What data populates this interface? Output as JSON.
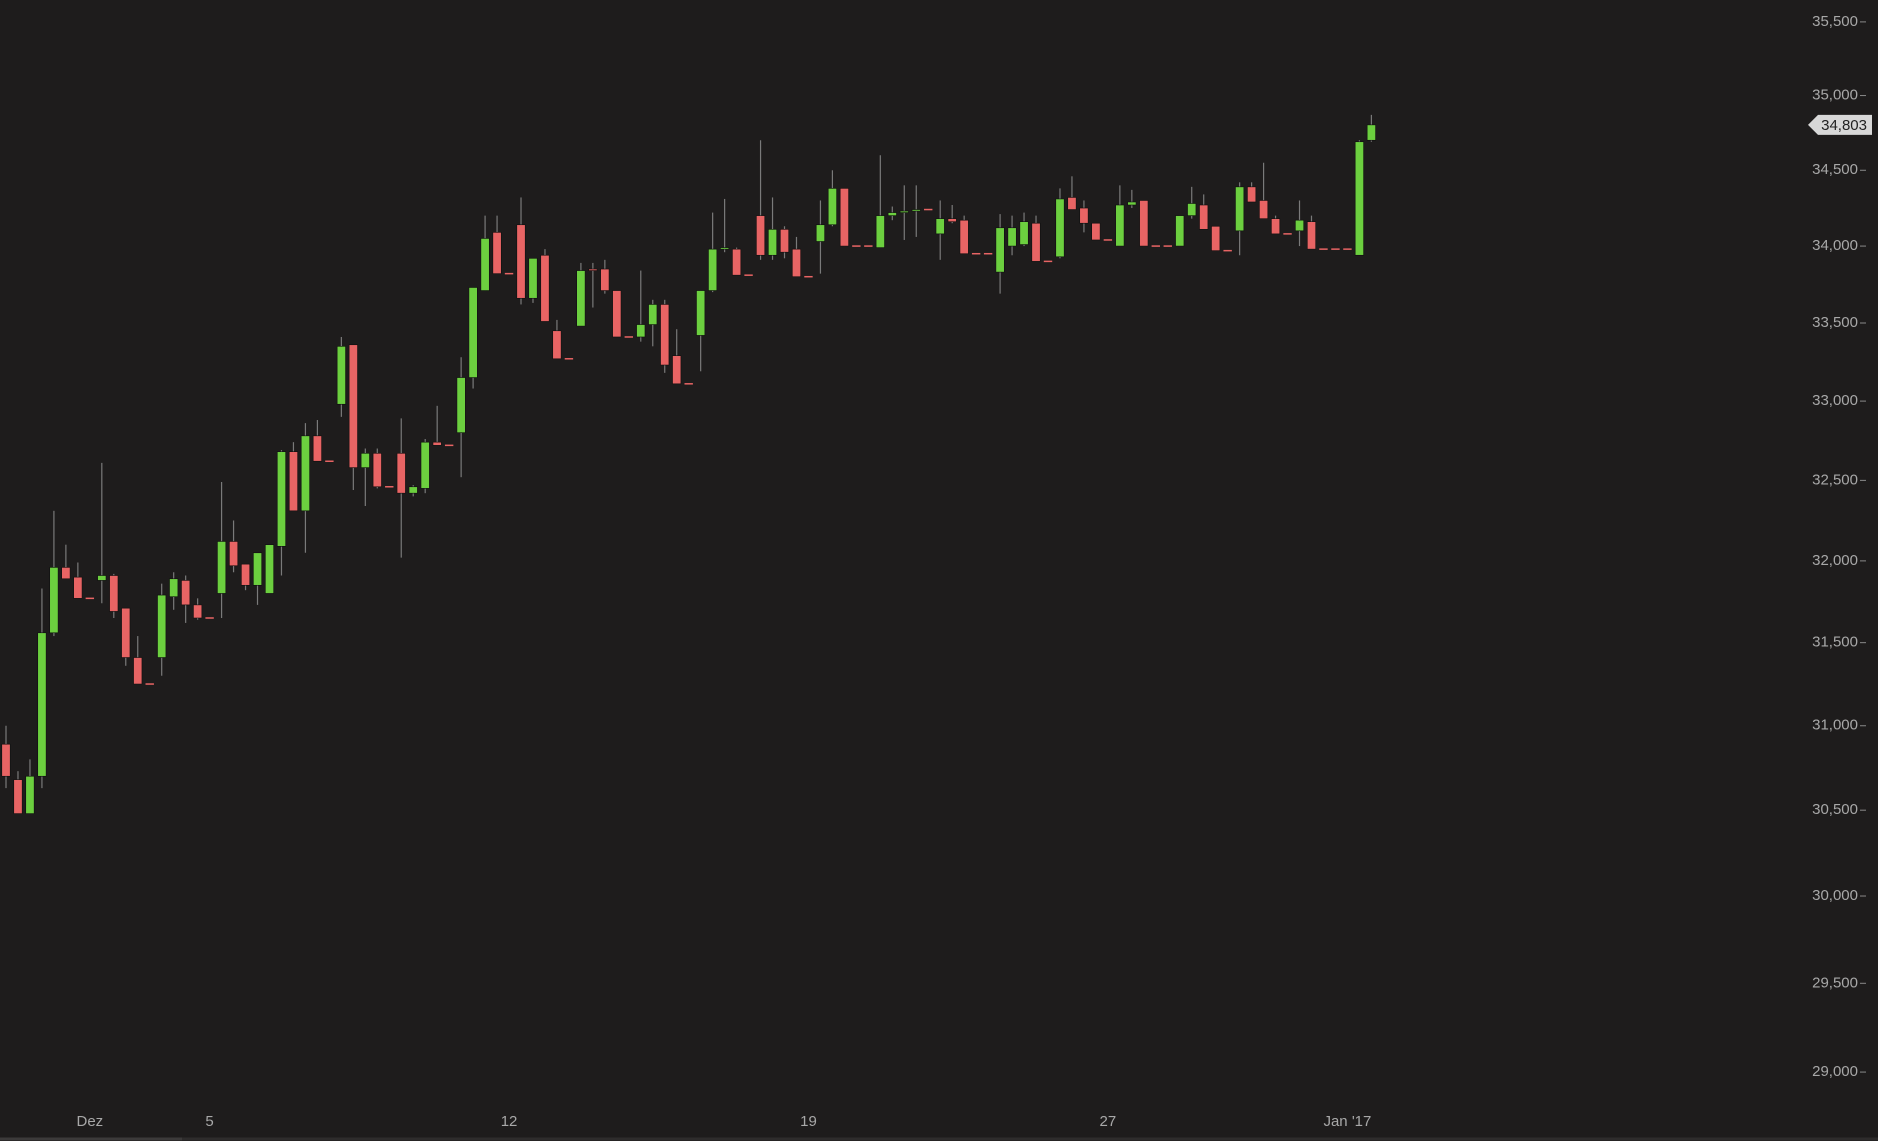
{
  "chart_data": {
    "type": "candlestick",
    "categories": [
      null,
      null,
      null,
      null,
      null,
      null,
      null,
      "Dez",
      null,
      null,
      null,
      null,
      null,
      null,
      null,
      null,
      null,
      "5",
      null,
      null,
      null,
      null,
      null,
      null,
      null,
      null,
      null,
      null,
      null,
      null,
      null,
      null,
      null,
      null,
      null,
      null,
      null,
      null,
      null,
      null,
      null,
      null,
      "12",
      null,
      null,
      null,
      null,
      null,
      null,
      null,
      null,
      null,
      null,
      null,
      null,
      null,
      null,
      null,
      null,
      null,
      null,
      null,
      null,
      null,
      null,
      null,
      null,
      "19",
      null,
      null,
      null,
      null,
      null,
      null,
      null,
      null,
      null,
      null,
      null,
      null,
      null,
      null,
      null,
      null,
      null,
      null,
      null,
      null,
      null,
      null,
      null,
      null,
      "27",
      null,
      null,
      null,
      null,
      null,
      null,
      null,
      null,
      null,
      null,
      null,
      null,
      null,
      null,
      null,
      null,
      null,
      null,
      null,
      "Jan '17",
      null,
      null
    ],
    "open": [
      30890,
      30680,
      30480,
      30700,
      31560,
      31960,
      31900,
      31770,
      31880,
      31910,
      31710,
      31410,
      31250,
      31410,
      31780,
      31880,
      31730,
      31650,
      31800,
      32120,
      31980,
      31850,
      31800,
      32090,
      32680,
      32310,
      32780,
      32620,
      32980,
      33360,
      32580,
      32670,
      32460,
      32670,
      32420,
      32450,
      32740,
      32720,
      32800,
      33150,
      33710,
      34090,
      33820,
      34140,
      33660,
      33940,
      33450,
      33270,
      33480,
      33850,
      33850,
      33710,
      33410,
      33410,
      33490,
      33620,
      33290,
      33110,
      33420,
      33710,
      33980,
      33980,
      33810,
      34200,
      33940,
      34110,
      33980,
      33800,
      34030,
      34140,
      34380,
      34000,
      34000,
      33990,
      34200,
      34220,
      34230,
      34240,
      34080,
      34180,
      34170,
      33950,
      33950,
      33830,
      34000,
      34010,
      34150,
      33900,
      33930,
      34320,
      34250,
      34150,
      34040,
      34000,
      34270,
      34300,
      34000,
      34000,
      34000,
      34200,
      34270,
      34130,
      33970,
      34100,
      34390,
      34300,
      34180,
      34080,
      34100,
      34160,
      33980,
      33980,
      33980,
      33940,
      34700
    ],
    "high": [
      31000,
      30730,
      30800,
      31830,
      32310,
      32100,
      31990,
      31770,
      32610,
      31920,
      31710,
      31540,
      31250,
      31860,
      31930,
      31910,
      31770,
      31650,
      32490,
      32250,
      31980,
      32050,
      32100,
      32690,
      32740,
      32860,
      32880,
      32620,
      33410,
      33360,
      32700,
      32700,
      32460,
      32890,
      32470,
      32760,
      32970,
      32720,
      33280,
      33730,
      34200,
      34200,
      33820,
      34320,
      33920,
      33980,
      33520,
      33270,
      33890,
      33890,
      33910,
      33710,
      33410,
      33840,
      33650,
      33650,
      33460,
      33110,
      33710,
      34220,
      34310,
      33990,
      33810,
      34700,
      34320,
      34130,
      34060,
      33800,
      34300,
      34500,
      34380,
      34000,
      34000,
      34600,
      34260,
      34400,
      34400,
      34240,
      34300,
      34270,
      34200,
      33950,
      33950,
      34210,
      34200,
      34220,
      34200,
      33900,
      34380,
      34460,
      34300,
      34150,
      34040,
      34400,
      34370,
      34300,
      34000,
      34000,
      34200,
      34390,
      34340,
      34130,
      33970,
      34420,
      34420,
      34550,
      34200,
      34080,
      34300,
      34200,
      33980,
      33980,
      33980,
      34700,
      34870
    ],
    "low": [
      30630,
      30480,
      30480,
      30630,
      31540,
      31890,
      31770,
      31770,
      31740,
      31650,
      31360,
      31250,
      31250,
      31300,
      31700,
      31620,
      31640,
      31650,
      31650,
      31930,
      31820,
      31730,
      31800,
      31910,
      32310,
      32050,
      32620,
      32620,
      32900,
      32440,
      32340,
      32450,
      32460,
      32020,
      32400,
      32420,
      32720,
      32720,
      32520,
      33080,
      33710,
      33820,
      33820,
      33620,
      33630,
      33510,
      33270,
      33270,
      33480,
      33600,
      33690,
      33410,
      33410,
      33380,
      33350,
      33180,
      33110,
      33110,
      33190,
      33700,
      33960,
      33810,
      33810,
      33910,
      33910,
      33920,
      33800,
      33800,
      33820,
      34130,
      34000,
      34000,
      34000,
      33990,
      34170,
      34040,
      34060,
      34240,
      33910,
      34150,
      33950,
      33950,
      33950,
      33690,
      33940,
      34000,
      33900,
      33900,
      33920,
      34240,
      34090,
      34040,
      34040,
      34000,
      34250,
      34000,
      34000,
      34000,
      34000,
      34180,
      34110,
      33970,
      33970,
      33940,
      34290,
      34180,
      34080,
      34080,
      34000,
      33980,
      33980,
      33980,
      33980,
      33940,
      34690
    ],
    "close": [
      30700,
      30480,
      30700,
      31560,
      31960,
      31890,
      31770,
      31770,
      31910,
      31690,
      31410,
      31250,
      31250,
      31790,
      31890,
      31730,
      31650,
      31650,
      32120,
      31970,
      31850,
      32050,
      32100,
      32680,
      32310,
      32780,
      32620,
      32620,
      33350,
      32580,
      32670,
      32460,
      32460,
      32420,
      32460,
      32740,
      32720,
      32720,
      33150,
      33730,
      34050,
      33820,
      33820,
      33660,
      33920,
      33510,
      33270,
      33270,
      33840,
      33840,
      33710,
      33410,
      33410,
      33490,
      33620,
      33230,
      33110,
      33110,
      33710,
      33980,
      33990,
      33810,
      33810,
      33940,
      34110,
      33960,
      33800,
      33800,
      34140,
      34380,
      34000,
      34000,
      34000,
      34200,
      34220,
      34230,
      34240,
      34240,
      34180,
      34160,
      33950,
      33950,
      33950,
      34120,
      34120,
      34160,
      33900,
      33900,
      34310,
      34240,
      34150,
      34040,
      34040,
      34270,
      34290,
      34000,
      34000,
      34000,
      34200,
      34280,
      34110,
      33970,
      33970,
      34390,
      34290,
      34180,
      34080,
      34080,
      34170,
      33980,
      33980,
      33980,
      33980,
      34690,
      34803
    ],
    "up_color": "#6ccf3f",
    "down_color": "#e86464",
    "wick_color": "#7a7a7a",
    "last_label": "34,803",
    "log_y": true,
    "ylim": [
      28800,
      35650
    ],
    "yticks": [
      {
        "value": 29000,
        "label": "29,000"
      },
      {
        "value": 29500,
        "label": "29,500"
      },
      {
        "value": 30000,
        "label": "30,000"
      },
      {
        "value": 30500,
        "label": "30,500"
      },
      {
        "value": 31000,
        "label": "31,000"
      },
      {
        "value": 31500,
        "label": "31,500"
      },
      {
        "value": 32000,
        "label": "32,000"
      },
      {
        "value": 32500,
        "label": "32,500"
      },
      {
        "value": 33000,
        "label": "33,000"
      },
      {
        "value": 33500,
        "label": "33,500"
      },
      {
        "value": 34000,
        "label": "34,000"
      },
      {
        "value": 34500,
        "label": "34,500"
      },
      {
        "value": 35000,
        "label": "35,000"
      },
      {
        "value": 35500,
        "label": "35,500"
      }
    ]
  }
}
